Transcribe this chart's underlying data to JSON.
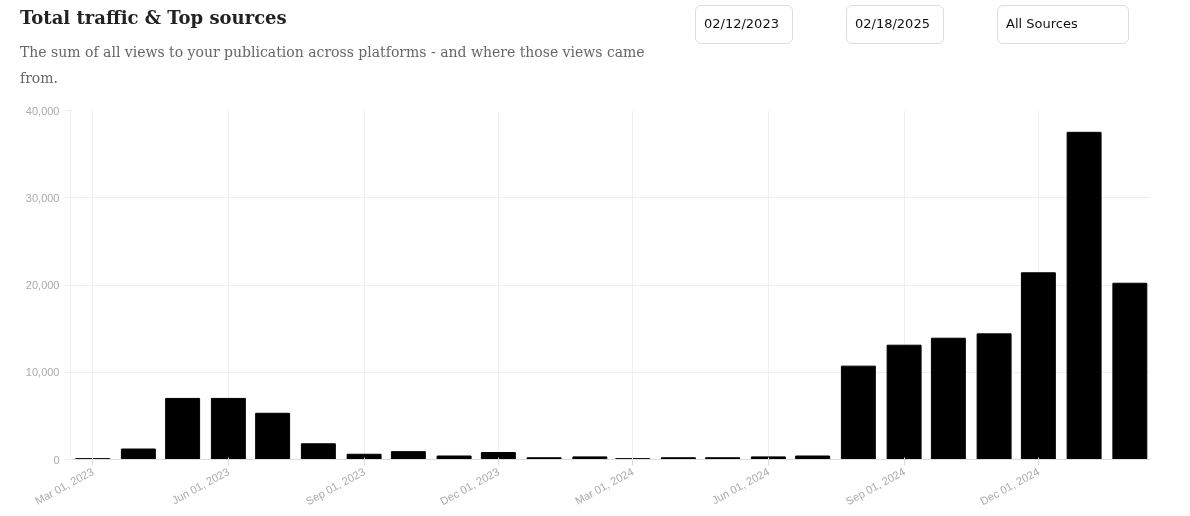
{
  "chart_data": {
    "type": "bar",
    "title": "Total traffic & Top sources",
    "subtitle": "The sum of all views to your publication across platforms - and where those views came from.",
    "annotations": [
      "02/12/2023",
      "02/18/2025",
      "All Sources"
    ],
    "x": [
      "2023-03",
      "2023-04",
      "2023-05",
      "2023-06",
      "2023-07",
      "2023-08",
      "2023-09",
      "2023-10",
      "2023-11",
      "2023-12",
      "2024-01",
      "2024-02",
      "2024-03",
      "2024-04",
      "2024-05",
      "2024-06",
      "2024-07",
      "2024-08",
      "2024-09",
      "2024-10",
      "2024-11",
      "2024-12",
      "2025-01",
      "2025-02"
    ],
    "values": [
      100,
      1200,
      7000,
      7000,
      5300,
      1800,
      600,
      900,
      400,
      800,
      200,
      300,
      100,
      200,
      200,
      300,
      400,
      10700,
      13100,
      13900,
      14400,
      21400,
      37500,
      20200
    ],
    "color": "#000000",
    "xlim": [
      "2023-02-14",
      "2025-02-15"
    ],
    "xticks": [
      {
        "value": "2023-03-01",
        "label": "Mar 01, 2023"
      },
      {
        "value": "2023-06-01",
        "label": "Jun 01, 2023"
      },
      {
        "value": "2023-09-01",
        "label": "Sep 01, 2023"
      },
      {
        "value": "2023-12-01",
        "label": "Dec 01, 2023"
      },
      {
        "value": "2024-03-01",
        "label": "Mar 01, 2024"
      },
      {
        "value": "2024-06-01",
        "label": "Jun 01, 2024"
      },
      {
        "value": "2024-09-01",
        "label": "Sep 01, 2024"
      },
      {
        "value": "2024-12-01",
        "label": "Dec 01, 2024"
      }
    ],
    "ylim": [
      0,
      40000
    ],
    "yticks": [
      0,
      {
        "value": 10000,
        "label": "10,000"
      },
      {
        "value": 20000,
        "label": "20,000"
      },
      {
        "value": 30000,
        "label": "30,000"
      },
      {
        "value": 40000,
        "label": "40,000"
      }
    ],
    "grid": true
  }
}
